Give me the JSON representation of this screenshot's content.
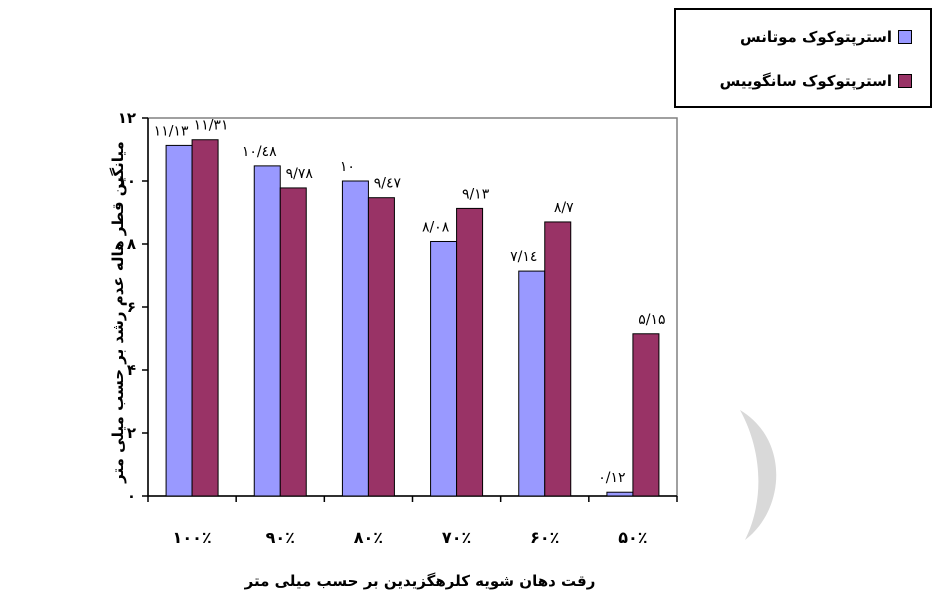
{
  "chart_data": {
    "type": "bar",
    "categories": [
      "۱۰۰٪",
      "۹۰٪",
      "۸۰٪",
      "۷۰٪",
      "۶۰٪",
      "۵۰٪"
    ],
    "series": [
      {
        "name": "استرپتوکوک موتانس",
        "values": [
          11.13,
          10.48,
          10,
          8.08,
          7.14,
          0.12
        ],
        "labels": [
          "۱۱/۱۳",
          "۱۰/٤۸",
          "۱۰",
          "۸/۰۸",
          "۷/۱٤",
          "۰/۱۲"
        ],
        "color": "#9999ff"
      },
      {
        "name": "استرپتوکوک سانگوییس",
        "values": [
          11.31,
          9.78,
          9.47,
          9.13,
          8.7,
          5.15
        ],
        "labels": [
          "۱۱/۳۱",
          "۹/۷۸",
          "۹/٤۷",
          "۹/۱۳",
          "۸/۷",
          "۵/۱۵"
        ],
        "color": "#993366"
      }
    ],
    "yticks": [
      0,
      2,
      4,
      6,
      8,
      10,
      12
    ],
    "ytick_labels": [
      "۰",
      "۲",
      "۴",
      "۶",
      "۸",
      "۱۰",
      "۱۲"
    ],
    "ylim": [
      0,
      12
    ],
    "xlabel": "رقت دهان شویه  کلرهگزیدین  بر حسب میلی متر",
    "ylabel": "میانگین قطر هاله  عدم رشد بر حسب میلی متر",
    "legend_position": "top-right",
    "grid": false
  }
}
